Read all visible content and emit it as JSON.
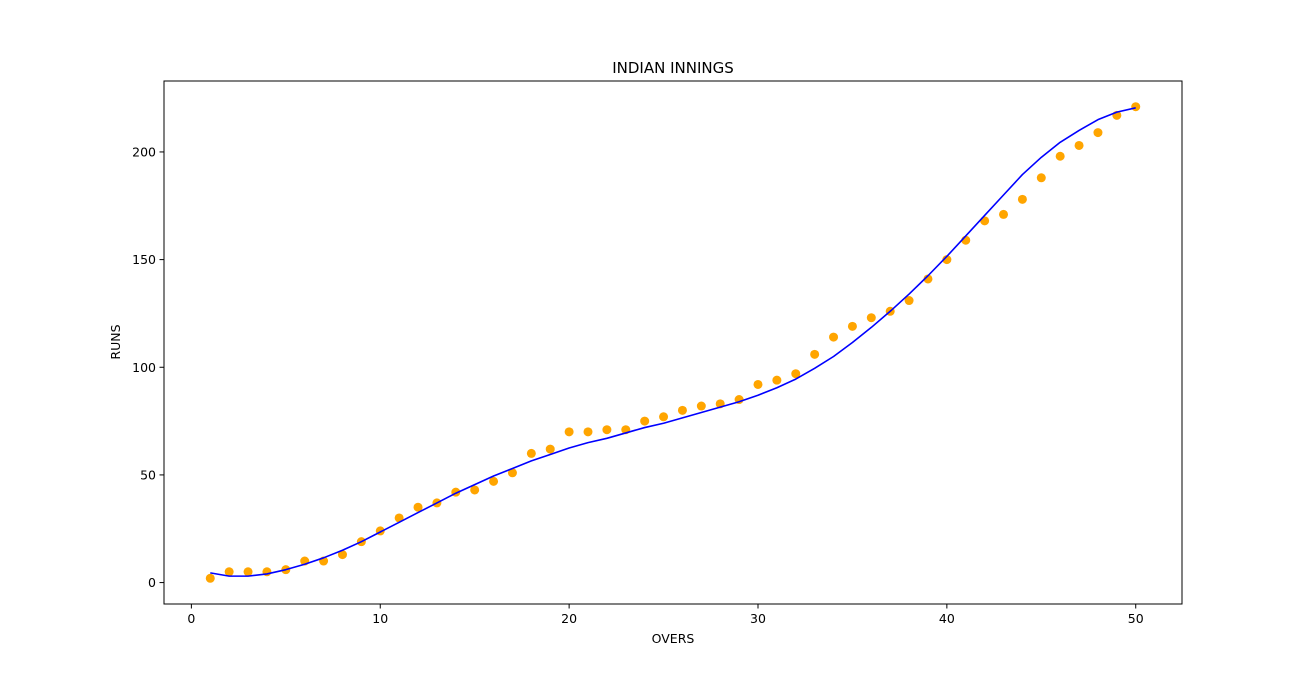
{
  "chart_data": {
    "type": "scatter",
    "title": "INDIAN INNINGS",
    "xlabel": "OVERS",
    "ylabel": "RUNS",
    "xlim": [
      -1.45,
      52.45
    ],
    "ylim": [
      -9.95,
      232.95
    ],
    "x_ticks": [
      0,
      10,
      20,
      30,
      40,
      50
    ],
    "y_ticks": [
      0,
      50,
      100,
      150,
      200
    ],
    "grid": false,
    "legend": "none",
    "series": [
      {
        "kind": "scatter",
        "color": "#FFA500",
        "x": [
          1,
          2,
          3,
          4,
          5,
          6,
          7,
          8,
          9,
          10,
          11,
          12,
          13,
          14,
          15,
          16,
          17,
          18,
          19,
          20,
          21,
          22,
          23,
          24,
          25,
          26,
          27,
          28,
          29,
          30,
          31,
          32,
          33,
          34,
          35,
          36,
          37,
          38,
          39,
          40,
          41,
          42,
          43,
          44,
          45,
          46,
          47,
          48,
          49,
          50
        ],
        "y": [
          2,
          5,
          5,
          5,
          6,
          10,
          10,
          13,
          19,
          24,
          30,
          35,
          37,
          42,
          43,
          47,
          51,
          60,
          62,
          70,
          70,
          71,
          71,
          75,
          77,
          80,
          82,
          83,
          85,
          92,
          94,
          97,
          106,
          114,
          119,
          123,
          126,
          131,
          141,
          150,
          159,
          168,
          171,
          178,
          188,
          198,
          203,
          209,
          217,
          221
        ]
      },
      {
        "kind": "line",
        "color": "#0000FF",
        "x": [
          1,
          2,
          3,
          4,
          5,
          6,
          7,
          8,
          9,
          10,
          11,
          12,
          13,
          14,
          15,
          16,
          17,
          18,
          19,
          20,
          21,
          22,
          23,
          24,
          25,
          26,
          27,
          28,
          29,
          30,
          31,
          32,
          33,
          34,
          35,
          36,
          37,
          38,
          39,
          40,
          41,
          42,
          43,
          44,
          45,
          46,
          47,
          48,
          49,
          50
        ],
        "y": [
          4.5,
          3,
          3,
          4,
          6,
          8.5,
          11.5,
          15,
          19,
          23.5,
          28,
          32.5,
          37,
          41.5,
          45.5,
          49.5,
          53,
          56.5,
          59.5,
          62.5,
          65,
          67,
          69.5,
          72,
          74,
          76.5,
          79,
          81.5,
          84,
          87,
          90.5,
          94.5,
          99.5,
          105,
          111.5,
          118.5,
          126,
          134,
          142.5,
          151.5,
          161,
          170.5,
          180,
          189.5,
          197.5,
          204.5,
          210,
          215,
          218.5,
          220.5
        ]
      }
    ]
  }
}
